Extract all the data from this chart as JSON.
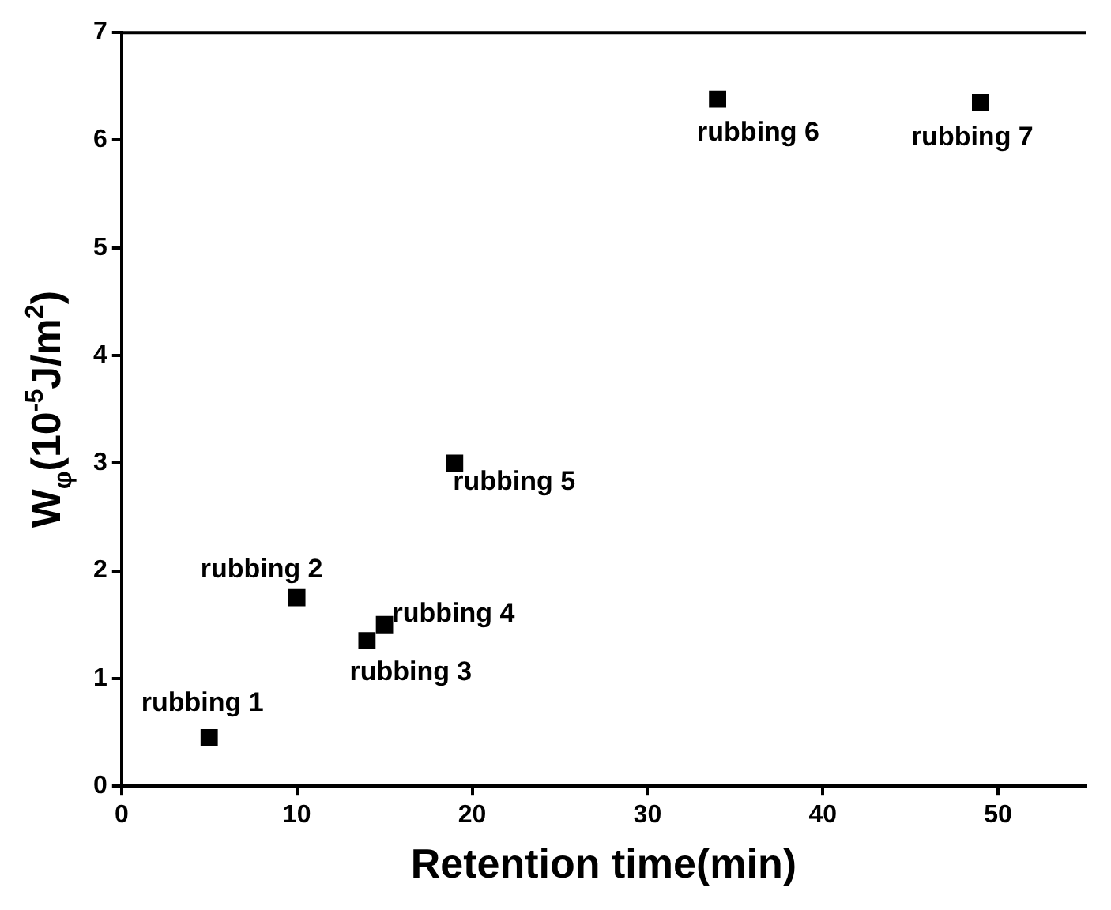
{
  "chart_data": {
    "type": "scatter",
    "xlabel": "Retention time(min)",
    "ylabel": "W$_{φ}$(10$^{-5}$J/m$^{2}$)",
    "x": [
      5,
      10,
      14,
      15,
      19,
      34,
      49
    ],
    "values": [
      0.45,
      1.75,
      1.35,
      1.5,
      3.0,
      6.38,
      6.35
    ],
    "color": "#000000",
    "marker": "square",
    "xlim": [
      0,
      55
    ],
    "xticks": [
      0,
      10,
      20,
      30,
      40,
      50
    ],
    "ylim": [
      0,
      7
    ],
    "yticks": [
      0,
      1,
      2,
      3,
      4,
      5,
      6,
      7
    ],
    "grid": false,
    "legend": false,
    "annotations": [
      {
        "text": "rubbing 1",
        "x": 5,
        "y": 0.45
      },
      {
        "text": "rubbing 2",
        "x": 10,
        "y": 1.75
      },
      {
        "text": "rubbing 3",
        "x": 14,
        "y": 1.35
      },
      {
        "text": "rubbing 4",
        "x": 15,
        "y": 1.5
      },
      {
        "text": "rubbing 5",
        "x": 19,
        "y": 3.0
      },
      {
        "text": "rubbing 6",
        "x": 34,
        "y": 6.38
      },
      {
        "text": "rubbing 7",
        "x": 49,
        "y": 6.35
      }
    ]
  }
}
